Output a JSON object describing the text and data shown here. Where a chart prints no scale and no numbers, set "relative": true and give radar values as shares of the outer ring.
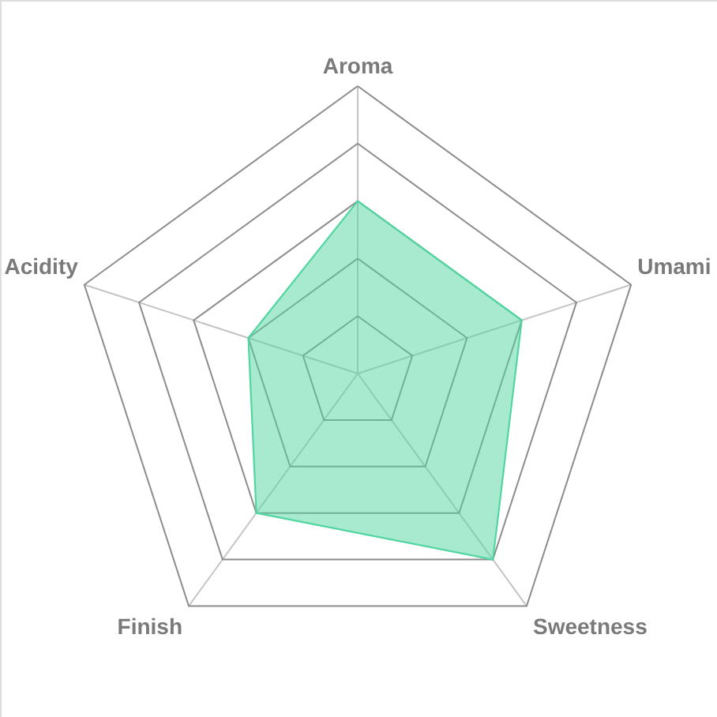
{
  "chart_data": {
    "type": "radar",
    "relative": true,
    "categories": [
      "Aroma",
      "Umami",
      "Sweetness",
      "Finish",
      "Acidity"
    ],
    "series": [
      {
        "color": "#52d6a0",
        "values": [
          0.6,
          0.6,
          0.8,
          0.6,
          0.4
        ]
      }
    ],
    "grid": true
  }
}
